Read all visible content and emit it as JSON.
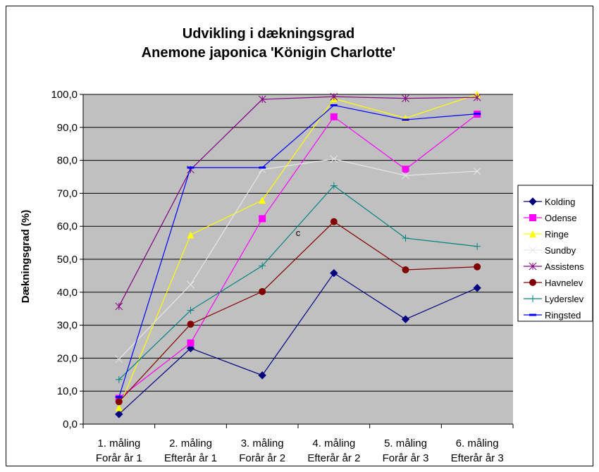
{
  "chart_data": {
    "type": "line",
    "title": "Udvikling i dækningsgrad",
    "subtitle": "Anemone japonica 'Königin Charlotte'",
    "ylabel": "Dækningsgrad (%)",
    "xlabel": "",
    "ylim": [
      0,
      100
    ],
    "ytick_step": 10,
    "ytick_labels": [
      "0,0",
      "10,0",
      "20,0",
      "30,0",
      "40,0",
      "50,0",
      "60,0",
      "70,0",
      "80,0",
      "90,0",
      "100,0"
    ],
    "grid": true,
    "plot_background": "#c0c0c0",
    "legend_position": "right",
    "categories": [
      [
        "1. måling",
        "Forår år 1"
      ],
      [
        "2. måling",
        "Efterår år 1"
      ],
      [
        "3. måling",
        "Forår år 2"
      ],
      [
        "4. måling",
        "Efterår år 2"
      ],
      [
        "5. måling",
        "Forår år 3"
      ],
      [
        "6. måling",
        "Efterår år 3"
      ]
    ],
    "annotation": {
      "text": "c",
      "x_index": 2.5,
      "y": 57
    },
    "series": [
      {
        "name": "Kolding",
        "color": "#000080",
        "marker": "diamond",
        "values": [
          3.0,
          23.0,
          14.8,
          45.8,
          31.8,
          41.3
        ]
      },
      {
        "name": "Odense",
        "color": "#ff00ff",
        "marker": "square",
        "values": [
          7.8,
          24.6,
          62.3,
          93.2,
          77.3,
          94.0
        ]
      },
      {
        "name": "Ringe",
        "color": "#ffff00",
        "marker": "triangle",
        "values": [
          5.0,
          57.4,
          67.9,
          98.7,
          92.8,
          100.0
        ]
      },
      {
        "name": "Sundby",
        "color": "#e8e8e8",
        "marker": "x",
        "values": [
          19.7,
          42.3,
          77.2,
          80.4,
          75.4,
          76.7
        ]
      },
      {
        "name": "Assistens",
        "color": "#800080",
        "marker": "star",
        "values": [
          35.7,
          77.2,
          98.5,
          99.3,
          98.8,
          99.1
        ]
      },
      {
        "name": "Havnelev",
        "color": "#800000",
        "marker": "circle",
        "values": [
          6.8,
          30.3,
          40.2,
          61.4,
          46.8,
          47.7
        ]
      },
      {
        "name": "Lyderslev",
        "color": "#008080",
        "marker": "plus",
        "values": [
          13.5,
          34.5,
          48.0,
          72.3,
          56.4,
          53.9
        ]
      },
      {
        "name": "Ringsted",
        "color": "#0000ff",
        "marker": "dash",
        "values": [
          8.2,
          77.8,
          77.8,
          96.7,
          92.3,
          94.1
        ]
      }
    ]
  }
}
